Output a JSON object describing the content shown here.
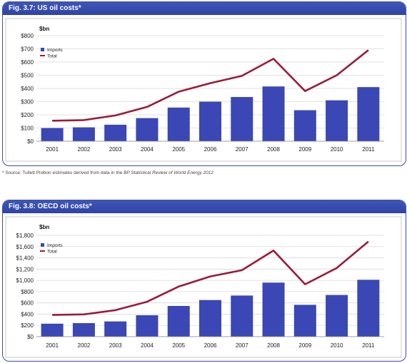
{
  "source": {
    "prefix": "* Source: Tullett Prebon estimates derived from data in the ",
    "publication": "BP Statistical Review of World Energy 2012"
  },
  "chart_data": [
    {
      "type": "bar",
      "title": "Fig. 3.7: US oil costs*",
      "ylabel": "$bn",
      "ylim": [
        0,
        800
      ],
      "yticks": [
        0,
        100,
        200,
        300,
        400,
        500,
        600,
        700,
        800
      ],
      "ytick_labels": [
        "$0",
        "$100",
        "$200",
        "$300",
        "$400",
        "$500",
        "$600",
        "$700",
        "$800"
      ],
      "categories": [
        "2001",
        "2002",
        "2003",
        "2004",
        "2005",
        "2006",
        "2007",
        "2008",
        "2009",
        "2010",
        "2011"
      ],
      "grid": true,
      "legend": "top-left",
      "series": [
        {
          "name": "Imports",
          "kind": "bar",
          "color": "#3a47b4",
          "values": [
            100,
            105,
            125,
            175,
            255,
            300,
            335,
            415,
            235,
            310,
            410
          ]
        },
        {
          "name": "Total",
          "kind": "line",
          "color": "#9b1b3a",
          "values": [
            155,
            160,
            195,
            260,
            375,
            440,
            495,
            625,
            380,
            500,
            690
          ]
        }
      ]
    },
    {
      "type": "bar",
      "title": "Fig. 3.8: OECD oil costs*",
      "ylabel": "$bn",
      "ylim": [
        0,
        1800
      ],
      "yticks": [
        0,
        200,
        400,
        600,
        800,
        1000,
        1200,
        1400,
        1600,
        1800
      ],
      "ytick_labels": [
        "$0",
        "$200",
        "$400",
        "$600",
        "$800",
        "$1,000",
        "$1,200",
        "$1,400",
        "$1,600",
        "$1,800"
      ],
      "categories": [
        "2001",
        "2002",
        "2003",
        "2004",
        "2005",
        "2006",
        "2007",
        "2008",
        "2009",
        "2010",
        "2011"
      ],
      "grid": true,
      "legend": "top-left",
      "series": [
        {
          "name": "Imports",
          "kind": "bar",
          "color": "#3a47b4",
          "values": [
            230,
            240,
            270,
            380,
            545,
            650,
            730,
            960,
            565,
            740,
            1010
          ]
        },
        {
          "name": "Total",
          "kind": "line",
          "color": "#9b1b3a",
          "values": [
            385,
            395,
            470,
            620,
            890,
            1070,
            1180,
            1530,
            930,
            1220,
            1690
          ]
        }
      ]
    }
  ]
}
